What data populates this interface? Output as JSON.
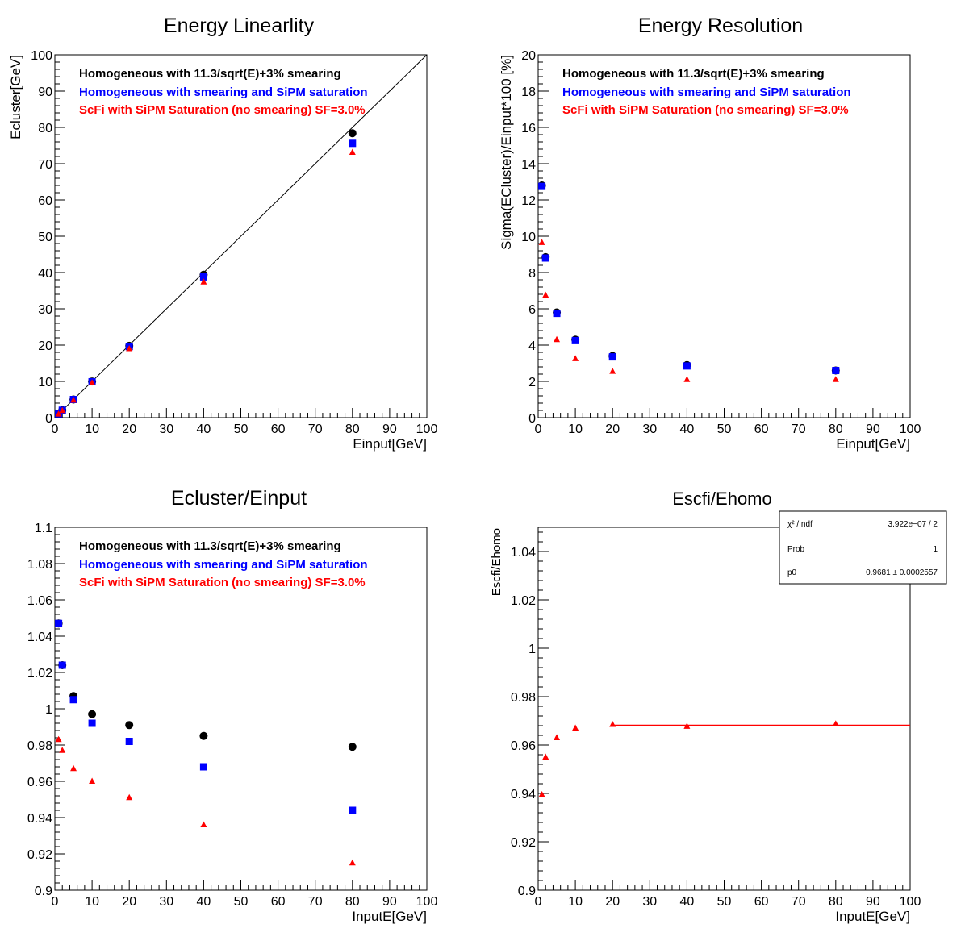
{
  "colors": {
    "homo": "#000000",
    "smear": "#0000ff",
    "scfi": "#ff0000",
    "fit": "#ff0000"
  },
  "chart_data": [
    {
      "type": "scatter",
      "title": "Energy Linearlity",
      "xlabel": "Einput[GeV]",
      "ylabel": "Ecluster[GeV]",
      "xlim": [
        0,
        100
      ],
      "ylim": [
        0,
        100
      ],
      "xticks": [
        "0",
        "10",
        "20",
        "30",
        "40",
        "50",
        "60",
        "70",
        "80",
        "90",
        "100"
      ],
      "yticks": [
        "0",
        "10",
        "20",
        "30",
        "40",
        "50",
        "60",
        "70",
        "80",
        "90",
        "100"
      ],
      "legend": [
        "Homogeneous with 11.3/sqrt(E)+3% smearing",
        "Homogeneous with smearing and SiPM saturation",
        "ScFi with SiPM Saturation (no smearing) SF=3.0%"
      ],
      "legend_position": "top-left",
      "diagonal_line": true,
      "series": [
        {
          "key": "homo",
          "marker": "circle",
          "x": [
            1,
            2,
            5,
            10,
            20,
            40,
            80
          ],
          "y": [
            1.05,
            2.05,
            5.0,
            9.97,
            19.8,
            39.4,
            78.4
          ]
        },
        {
          "key": "smear",
          "marker": "square",
          "x": [
            1,
            2,
            5,
            10,
            20,
            40,
            80
          ],
          "y": [
            1.05,
            2.05,
            5.0,
            9.9,
            19.6,
            38.8,
            75.6
          ]
        },
        {
          "key": "scfi",
          "marker": "triangle",
          "x": [
            1,
            2,
            5,
            10,
            20,
            40,
            80
          ],
          "y": [
            0.98,
            1.95,
            4.8,
            9.6,
            19.0,
            37.4,
            73.1
          ]
        }
      ]
    },
    {
      "type": "scatter",
      "title": "Energy Resolution",
      "xlabel": "Einput[GeV]",
      "ylabel": "Sigma(ECluster)/Einput*100 [%]",
      "xlim": [
        0,
        100
      ],
      "ylim": [
        0,
        20
      ],
      "xticks": [
        "0",
        "10",
        "20",
        "30",
        "40",
        "50",
        "60",
        "70",
        "80",
        "90",
        "100"
      ],
      "yticks": [
        "0",
        "2",
        "4",
        "6",
        "8",
        "10",
        "12",
        "14",
        "16",
        "18",
        "20"
      ],
      "legend": [
        "Homogeneous with 11.3/sqrt(E)+3% smearing",
        "Homogeneous with smearing and SiPM saturation",
        "ScFi with SiPM Saturation (no smearing) SF=3.0%"
      ],
      "legend_position": "top-left",
      "series": [
        {
          "key": "homo",
          "marker": "circle",
          "x": [
            1,
            2,
            5,
            10,
            20,
            40,
            80
          ],
          "y": [
            12.8,
            8.85,
            5.8,
            4.3,
            3.4,
            2.9,
            2.6
          ]
        },
        {
          "key": "smear",
          "marker": "square",
          "x": [
            1,
            2,
            5,
            10,
            20,
            40,
            80
          ],
          "y": [
            12.75,
            8.8,
            5.75,
            4.25,
            3.35,
            2.85,
            2.6
          ]
        },
        {
          "key": "scfi",
          "marker": "triangle",
          "x": [
            1,
            2,
            5,
            10,
            20,
            40,
            80
          ],
          "y": [
            9.65,
            6.75,
            4.3,
            3.25,
            2.55,
            2.1,
            2.1
          ]
        }
      ]
    },
    {
      "type": "scatter",
      "title": "Ecluster/Einput",
      "xlabel": "InputE[GeV]",
      "ylabel": "",
      "xlim": [
        0,
        100
      ],
      "ylim": [
        0.9,
        1.1
      ],
      "xticks": [
        "0",
        "10",
        "20",
        "30",
        "40",
        "50",
        "60",
        "70",
        "80",
        "90",
        "100"
      ],
      "yticks": [
        "0.9",
        "0.92",
        "0.94",
        "0.96",
        "0.98",
        "1",
        "1.02",
        "1.04",
        "1.06",
        "1.08",
        "1.1"
      ],
      "legend": [
        "Homogeneous with 11.3/sqrt(E)+3% smearing",
        "Homogeneous with smearing and SiPM saturation",
        "ScFi with SiPM Saturation (no smearing) SF=3.0%"
      ],
      "legend_position": "top-left",
      "series": [
        {
          "key": "homo",
          "marker": "circle",
          "x": [
            1,
            2,
            5,
            10,
            20,
            40,
            80
          ],
          "y": [
            1.047,
            1.024,
            1.007,
            0.997,
            0.991,
            0.985,
            0.979
          ]
        },
        {
          "key": "smear",
          "marker": "square",
          "x": [
            1,
            2,
            5,
            10,
            20,
            40,
            80
          ],
          "y": [
            1.047,
            1.024,
            1.005,
            0.992,
            0.982,
            0.968,
            0.944
          ]
        },
        {
          "key": "scfi",
          "marker": "triangle",
          "x": [
            1,
            2,
            5,
            10,
            20,
            40,
            80
          ],
          "y": [
            0.983,
            0.977,
            0.967,
            0.96,
            0.951,
            0.936,
            0.915
          ]
        }
      ]
    },
    {
      "type": "scatter",
      "title": "Escfi/Ehomo",
      "xlabel": "InputE[GeV]",
      "ylabel": "Escfi/Ehomo",
      "xlim": [
        0,
        100
      ],
      "ylim": [
        0.9,
        1.05
      ],
      "xticks": [
        "0",
        "10",
        "20",
        "30",
        "40",
        "50",
        "60",
        "70",
        "80",
        "90",
        "100"
      ],
      "yticks": [
        "0.9",
        "0.92",
        "0.94",
        "0.96",
        "0.98",
        "1",
        "1.02",
        "1.04"
      ],
      "series": [
        {
          "key": "scfi",
          "marker": "triangle",
          "x": [
            1,
            2,
            5,
            10,
            20,
            40,
            80
          ],
          "y": [
            0.9395,
            0.955,
            0.963,
            0.967,
            0.9685,
            0.9677,
            0.9687
          ]
        }
      ],
      "fit_line": {
        "x": [
          20,
          100
        ],
        "y": [
          0.9681,
          0.9681
        ]
      },
      "stats": [
        {
          "label": "χ² / ndf",
          "value": "3.922e−07 / 2"
        },
        {
          "label": "Prob",
          "value": "1"
        },
        {
          "label": "p0",
          "value": "0.9681  ± 0.0002557"
        }
      ],
      "stats_position": "top-right"
    }
  ]
}
